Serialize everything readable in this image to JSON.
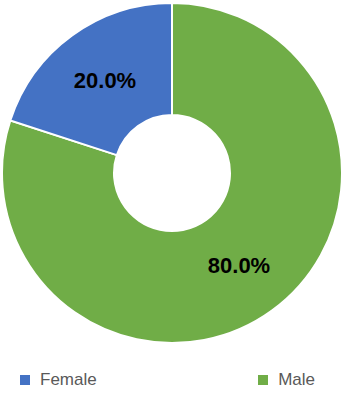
{
  "chart_data": {
    "type": "pie",
    "categories": [
      "Male",
      "Female"
    ],
    "values": [
      80,
      20
    ],
    "value_labels": [
      "80.0%",
      "20.0%"
    ],
    "colors": [
      "#70ad47",
      "#4472c4"
    ],
    "data_labels": true,
    "legend": "bottom"
  }
}
